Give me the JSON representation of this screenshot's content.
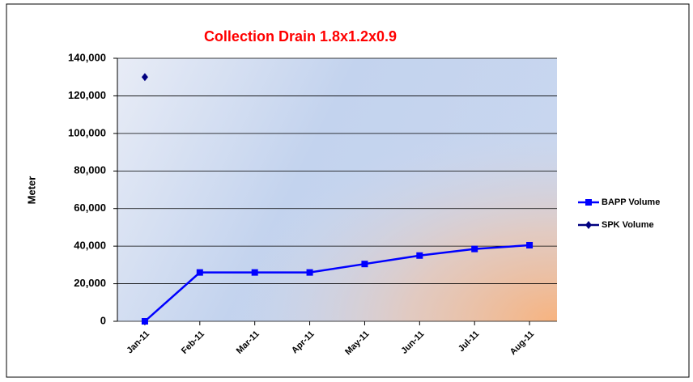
{
  "chart_data": {
    "type": "line",
    "title": "Collection Drain 1.8x1.2x0.9",
    "ylabel": "Meter",
    "categories": [
      "Jan-11",
      "Feb-11",
      "Mar-11",
      "Apr-11",
      "May-11",
      "Jun-11",
      "Jul-11",
      "Aug-11"
    ],
    "series": [
      {
        "name": "BAPP Volume",
        "color": "#0000ff",
        "marker": "square",
        "values": [
          0,
          26000,
          26000,
          26000,
          30500,
          35000,
          38500,
          40500
        ]
      },
      {
        "name": "SPK Volume",
        "color": "#000080",
        "marker": "diamond",
        "values": [
          130000,
          null,
          null,
          null,
          null,
          null,
          null,
          null
        ]
      }
    ],
    "ylim": [
      0,
      140000
    ],
    "yticks": [
      0,
      {
        "value": 20000,
        "label": "20,000"
      },
      {
        "value": 40000,
        "label": "40,000"
      },
      {
        "value": 60000,
        "label": "60,000"
      },
      {
        "value": 80000,
        "label": "80,000"
      },
      {
        "value": 100000,
        "label": "100,000"
      },
      {
        "value": 120000,
        "label": "120,000"
      },
      {
        "value": 140000,
        "label": "140,000"
      }
    ],
    "grid": true,
    "legend": "right"
  }
}
